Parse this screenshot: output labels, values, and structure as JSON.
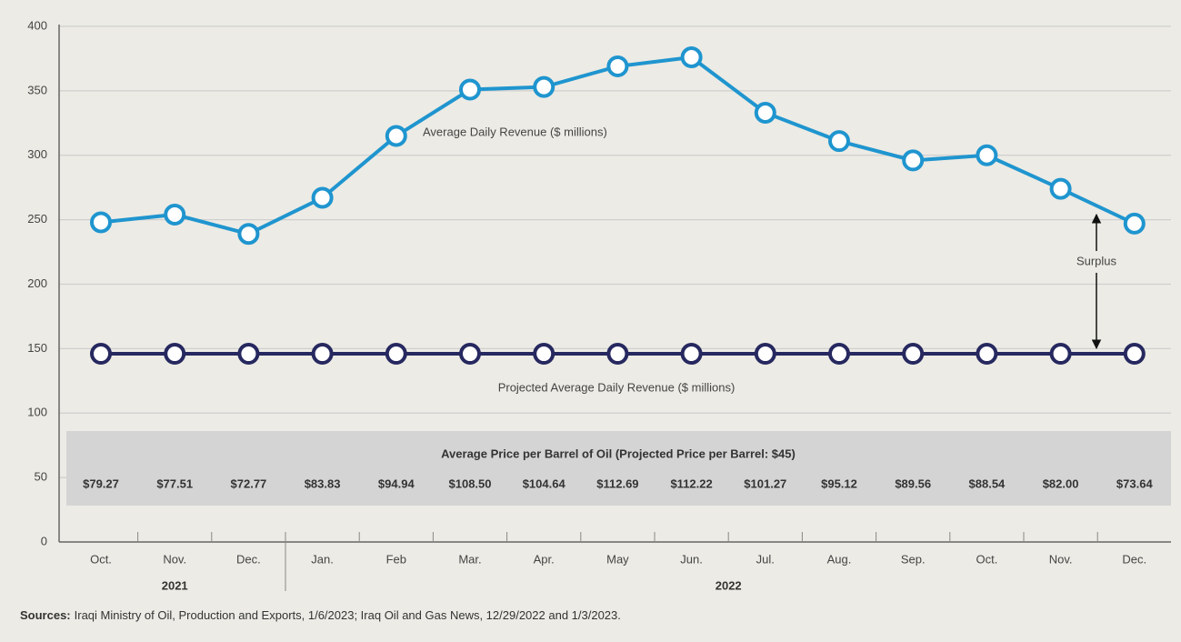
{
  "chart_data": {
    "type": "line",
    "categories": [
      "Oct.",
      "Nov.",
      "Dec.",
      "Jan.",
      "Feb",
      "Mar.",
      "Apr.",
      "May",
      "Jun.",
      "Jul.",
      "Aug.",
      "Sep.",
      "Oct.",
      "Nov.",
      "Dec."
    ],
    "groups": [
      {
        "label": "2021",
        "span": 3
      },
      {
        "label": "2022",
        "span": 12
      }
    ],
    "series": [
      {
        "name": "Average Daily Revenue ($ millions)",
        "color": "#1f95cf",
        "values": [
          248,
          254,
          239,
          267,
          315,
          351,
          353,
          369,
          376,
          333,
          311,
          296,
          300,
          274,
          247
        ]
      },
      {
        "name": "Projected Average Daily Revenue ($ millions)",
        "color": "#26285f",
        "values": [
          146,
          146,
          146,
          146,
          146,
          146,
          146,
          146,
          146,
          146,
          146,
          146,
          146,
          146,
          146
        ]
      }
    ],
    "ylim": [
      0,
      400
    ],
    "yticks": [
      0,
      50,
      100,
      150,
      200,
      250,
      300,
      350,
      400
    ],
    "grid": true,
    "annotation": "Surplus",
    "price_table": {
      "title": "Average Price per Barrel of Oil (Projected Price per Barrel: $45)",
      "values": [
        79.27,
        77.51,
        72.77,
        83.83,
        94.94,
        108.5,
        104.64,
        112.69,
        112.22,
        101.27,
        95.12,
        89.56,
        88.54,
        82.0,
        73.64
      ],
      "value_labels": [
        "$79.27",
        "$77.51",
        "$72.77",
        "$83.83",
        "$94.94",
        "$108.50",
        "$104.64",
        "$112.69",
        "$112.22",
        "$101.27",
        "$95.12",
        "$89.56",
        "$88.54",
        "$82.00",
        "$73.64"
      ]
    },
    "source": {
      "label": "Sources:",
      "text": "Iraqi Ministry of Oil, Production and Exports, 1/6/2023; Iraq Oil and Gas News, 12/29/2022 and 1/3/2023."
    }
  }
}
